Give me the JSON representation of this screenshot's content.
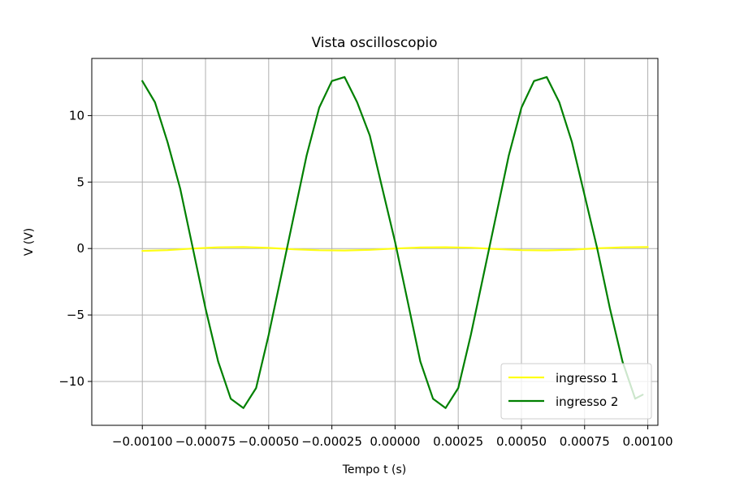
{
  "chart_data": {
    "type": "line",
    "title": "Vista oscilloscopio",
    "xlabel": "Tempo t (s)",
    "ylabel": "V (V)",
    "xlim": [
      -0.0012,
      0.00104
    ],
    "ylim": [
      -13.3,
      14.3
    ],
    "x_ticks": [
      -0.001,
      -0.00075,
      -0.0005,
      -0.00025,
      0.0,
      0.00025,
      0.0005,
      0.00075,
      0.001
    ],
    "x_tick_labels": [
      "−0.00100",
      "−0.00075",
      "−0.00050",
      "−0.00025",
      "0.00000",
      "0.00025",
      "0.00050",
      "0.00075",
      "0.00100"
    ],
    "y_ticks": [
      -10,
      -5,
      0,
      5,
      10
    ],
    "y_tick_labels": [
      "−10",
      "−5",
      "0",
      "5",
      "10"
    ],
    "grid": true,
    "legend_position": "lower-right",
    "series": [
      {
        "name": "ingresso 1",
        "color": "#ffff14",
        "x": [
          -0.001,
          -0.0009,
          -0.0008,
          -0.0007,
          -0.0006,
          -0.0005,
          -0.0004,
          -0.0003,
          -0.0002,
          -0.0001,
          0.0,
          0.0001,
          0.0002,
          0.0003,
          0.0004,
          0.0005,
          0.0006,
          0.0007,
          0.0008,
          0.0009,
          0.001
        ],
        "y": [
          -0.18,
          -0.12,
          0.0,
          0.09,
          0.11,
          0.05,
          -0.06,
          -0.13,
          -0.15,
          -0.1,
          0.0,
          0.08,
          0.1,
          0.06,
          -0.04,
          -0.12,
          -0.14,
          -0.09,
          0.02,
          0.09,
          0.11
        ]
      },
      {
        "name": "ingresso 2",
        "color": "#008000",
        "x": [
          -0.001,
          -0.00095,
          -0.0009,
          -0.00085,
          -0.0008,
          -0.00075,
          -0.0007,
          -0.00065,
          -0.0006,
          -0.00055,
          -0.0005,
          -0.00045,
          -0.0004,
          -0.00035,
          -0.0003,
          -0.00025,
          -0.0002,
          -0.00015,
          -0.0001,
          -5e-05,
          0.0,
          5e-05,
          0.0001,
          0.00015,
          0.0002,
          0.00025,
          0.0003,
          0.00035,
          0.0004,
          0.00045,
          0.0005,
          0.00055,
          0.0006,
          0.00065,
          0.0007,
          0.00075,
          0.0008,
          0.00085,
          0.0009,
          0.00095,
          0.00098
        ],
        "y": [
          12.6,
          11.0,
          8.0,
          4.5,
          0.0,
          -4.5,
          -8.5,
          -11.3,
          -12.0,
          -10.5,
          -6.5,
          -2.0,
          2.5,
          7.0,
          10.6,
          12.6,
          12.9,
          11.0,
          8.5,
          4.5,
          0.5,
          -4.0,
          -8.5,
          -11.3,
          -12.0,
          -10.5,
          -6.5,
          -2.0,
          2.5,
          7.0,
          10.6,
          12.6,
          12.9,
          11.0,
          8.0,
          4.0,
          0.0,
          -4.5,
          -8.5,
          -11.3,
          -11.0
        ]
      }
    ]
  }
}
